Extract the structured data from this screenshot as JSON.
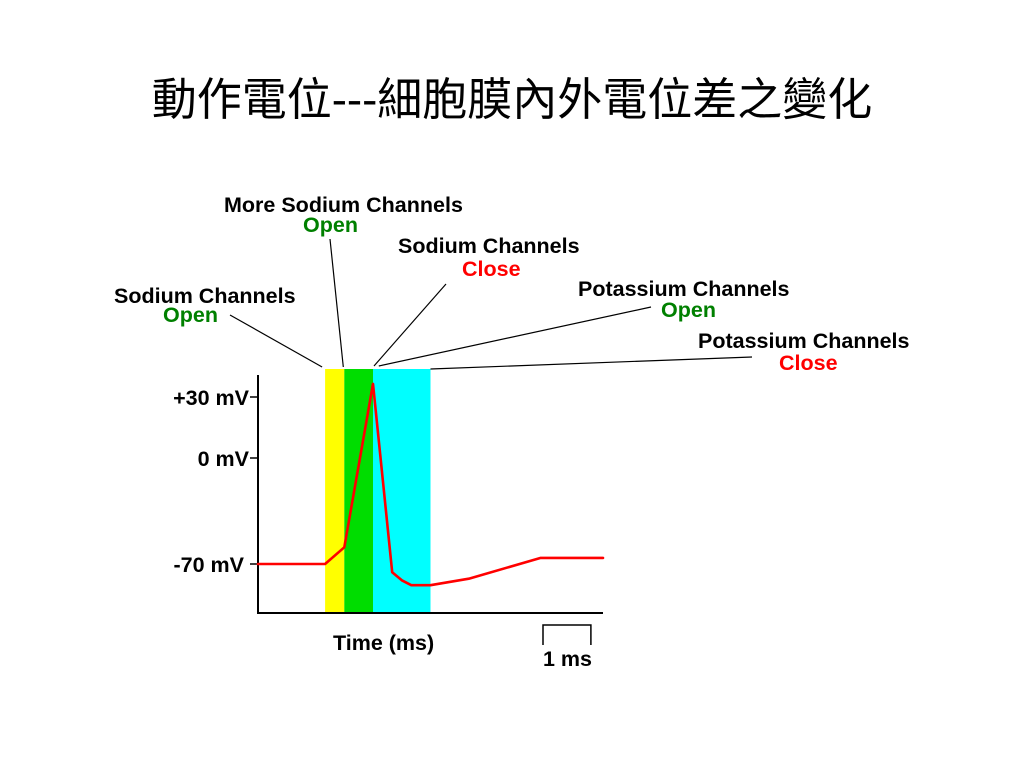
{
  "chart_data": {
    "type": "line",
    "title": "動作電位---細胞膜內外電位差之變化",
    "xlabel": "Time (ms)",
    "xlim": [
      0,
      7.2
    ],
    "ylim": [
      -100,
      45
    ],
    "yticks": [
      30,
      0,
      -70
    ],
    "yticklabels": [
      "+30 mV",
      "0 mV",
      "-70 mV"
    ],
    "grid": false,
    "series": [
      {
        "color": "#ff0000",
        "x": [
          0,
          1.4,
          1.8,
          2.4,
          2.8,
          3.0,
          3.2,
          3.6,
          4.4,
          5.9,
          7.2
        ],
        "y": [
          -70,
          -70,
          -59,
          37,
          -75,
          -80,
          -83,
          -83,
          -79,
          -66,
          -66
        ]
      }
    ],
    "bands": [
      {
        "x": [
          1.4,
          1.8
        ],
        "color": "#ffff00"
      },
      {
        "x": [
          1.8,
          2.4
        ],
        "color": "#00dd00"
      },
      {
        "x": [
          2.4,
          3.6
        ],
        "color": "#00ffff"
      }
    ],
    "annotations": [
      {
        "channel": "Sodium Channels",
        "state": "Open",
        "state_color": "#008000",
        "time": 1.4
      },
      {
        "channel": "More Sodium Channels",
        "state": "Open",
        "state_color": "#008000",
        "time": 1.8
      },
      {
        "channel": "Sodium Channels",
        "state": "Close",
        "state_color": "#ff0000",
        "time": 2.4
      },
      {
        "channel": "Potassium Channels",
        "state": "Open",
        "state_color": "#008000",
        "time": 2.5
      },
      {
        "channel": "Potassium Channels",
        "state": "Close",
        "state_color": "#ff0000",
        "time": 3.6
      }
    ],
    "scale_bar": {
      "value": 1,
      "label": "1 ms"
    }
  }
}
